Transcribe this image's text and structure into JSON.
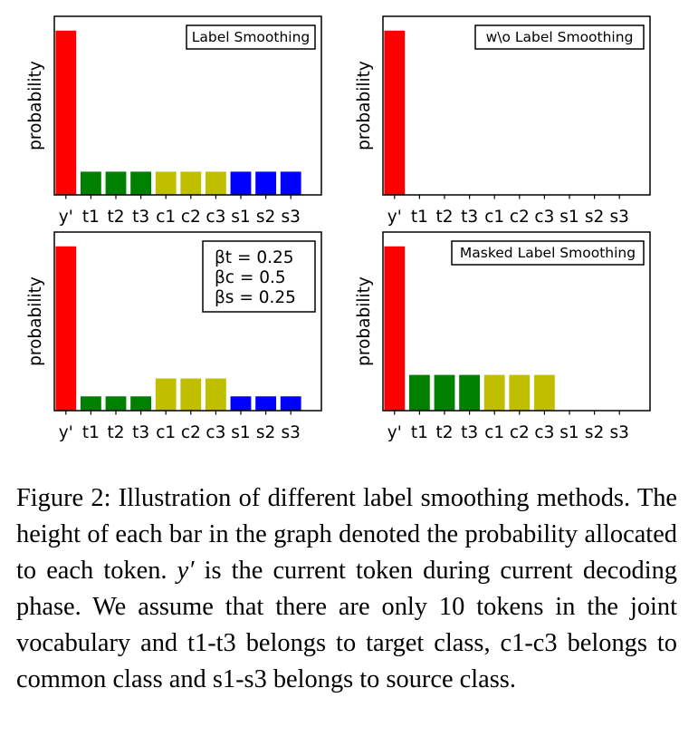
{
  "chart_data": [
    {
      "type": "bar",
      "categories": [
        "y'",
        "t1",
        "t2",
        "t3",
        "c1",
        "c2",
        "c3",
        "s1",
        "s2",
        "s3"
      ],
      "values": [
        0.92,
        0.13,
        0.13,
        0.13,
        0.13,
        0.13,
        0.13,
        0.13,
        0.13,
        0.13
      ],
      "colors": [
        "#ff0000",
        "#008000",
        "#008000",
        "#008000",
        "#bfbf00",
        "#bfbf00",
        "#bfbf00",
        "#0000ff",
        "#0000ff",
        "#0000ff"
      ],
      "ylabel": "probability",
      "legend_lines": [
        "Label Smoothing"
      ],
      "legend_position": "top-right",
      "ylim": [
        0,
        1
      ]
    },
    {
      "type": "bar",
      "categories": [
        "y'",
        "t1",
        "t2",
        "t3",
        "c1",
        "c2",
        "c3",
        "s1",
        "s2",
        "s3"
      ],
      "values": [
        0.92,
        0,
        0,
        0,
        0,
        0,
        0,
        0,
        0,
        0
      ],
      "colors": [
        "#ff0000",
        "#008000",
        "#008000",
        "#008000",
        "#bfbf00",
        "#bfbf00",
        "#bfbf00",
        "#0000ff",
        "#0000ff",
        "#0000ff"
      ],
      "ylabel": "probability",
      "legend_lines": [
        "w\\o Label Smoothing"
      ],
      "legend_position": "top-right",
      "ylim": [
        0,
        1
      ]
    },
    {
      "type": "bar",
      "categories": [
        "y'",
        "t1",
        "t2",
        "t3",
        "c1",
        "c2",
        "c3",
        "s1",
        "s2",
        "s3"
      ],
      "values": [
        0.92,
        0.08,
        0.08,
        0.08,
        0.18,
        0.18,
        0.18,
        0.08,
        0.08,
        0.08
      ],
      "colors": [
        "#ff0000",
        "#008000",
        "#008000",
        "#008000",
        "#bfbf00",
        "#bfbf00",
        "#bfbf00",
        "#0000ff",
        "#0000ff",
        "#0000ff"
      ],
      "ylabel": "probability",
      "legend_lines": [
        "βt = 0.25",
        "βc = 0.5",
        "βs = 0.25"
      ],
      "legend_position": "top-right",
      "ylim": [
        0,
        1
      ]
    },
    {
      "type": "bar",
      "categories": [
        "y'",
        "t1",
        "t2",
        "t3",
        "c1",
        "c2",
        "c3",
        "s1",
        "s2",
        "s3"
      ],
      "values": [
        0.92,
        0.2,
        0.2,
        0.2,
        0.2,
        0.2,
        0.2,
        0,
        0,
        0
      ],
      "colors": [
        "#ff0000",
        "#008000",
        "#008000",
        "#008000",
        "#bfbf00",
        "#bfbf00",
        "#bfbf00",
        "#0000ff",
        "#0000ff",
        "#0000ff"
      ],
      "ylabel": "probability",
      "legend_lines": [
        "Masked Label Smoothing"
      ],
      "legend_position": "top-right",
      "ylim": [
        0,
        1
      ]
    }
  ],
  "caption": {
    "part1": "Figure 2: Illustration of different label smoothing methods. The height of each bar in the graph denoted the probability allocated to each token. ",
    "var": "y′",
    "part2": " is the current token during current decoding phase. We assume that there are only 10 tokens in the joint vocabulary and t1-t3 belongs to target class, c1-c3 belongs to common class and s1-s3 belongs to source class."
  }
}
